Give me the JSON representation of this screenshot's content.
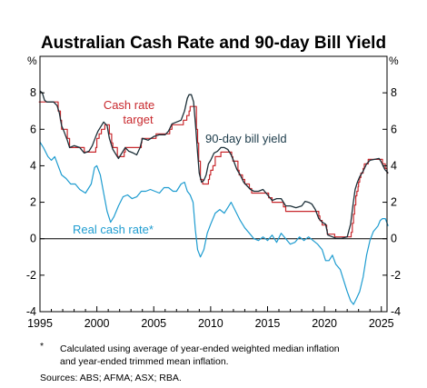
{
  "chart_data": {
    "type": "line",
    "title": "Australian Cash Rate and 90-day Bill Yield",
    "ylabel_left": "%",
    "ylabel_right": "%",
    "ylim": [
      -4,
      10
    ],
    "xlim": [
      1995,
      2025.5
    ],
    "x_ticks": [
      1995,
      2000,
      2005,
      2010,
      2015,
      2020,
      2025
    ],
    "y_ticks": [
      -4,
      -2,
      0,
      2,
      4,
      6,
      8
    ],
    "y_tick_labels": [
      "-4",
      "-2",
      "0",
      "2",
      "4",
      "6",
      "8"
    ],
    "grid": false,
    "annotations": {
      "cash_rate_line1": "Cash rate",
      "cash_rate_line2": "target",
      "bill_yield": "90-day bill yield",
      "real_rate": "Real cash rate*"
    },
    "series": [
      {
        "name": "Cash rate target",
        "color": "#c8282d",
        "step": true,
        "points": [
          [
            1994.9,
            7.5
          ],
          [
            1996.6,
            7.0
          ],
          [
            1996.8,
            6.5
          ],
          [
            1996.9,
            6.0
          ],
          [
            1997.4,
            5.5
          ],
          [
            1997.6,
            5.0
          ],
          [
            1998.9,
            4.75
          ],
          [
            1999.9,
            5.0
          ],
          [
            2000.0,
            5.5
          ],
          [
            2000.2,
            5.75
          ],
          [
            2000.4,
            6.0
          ],
          [
            2000.7,
            6.25
          ],
          [
            2001.1,
            5.75
          ],
          [
            2001.3,
            5.25
          ],
          [
            2001.4,
            5.0
          ],
          [
            2001.8,
            4.5
          ],
          [
            2002.4,
            4.75
          ],
          [
            2002.5,
            5.0
          ],
          [
            2003.9,
            5.25
          ],
          [
            2003.95,
            5.5
          ],
          [
            2005.2,
            5.75
          ],
          [
            2006.4,
            6.0
          ],
          [
            2006.6,
            6.25
          ],
          [
            2006.9,
            6.25
          ],
          [
            2007.6,
            6.5
          ],
          [
            2007.9,
            6.75
          ],
          [
            2008.1,
            7.0
          ],
          [
            2008.2,
            7.25
          ],
          [
            2008.75,
            6.0
          ],
          [
            2008.85,
            5.25
          ],
          [
            2008.95,
            4.25
          ],
          [
            2009.1,
            3.25
          ],
          [
            2009.3,
            3.0
          ],
          [
            2009.8,
            3.25
          ],
          [
            2009.9,
            3.5
          ],
          [
            2010.0,
            3.75
          ],
          [
            2010.2,
            4.0
          ],
          [
            2010.4,
            4.5
          ],
          [
            2010.9,
            4.75
          ],
          [
            2011.85,
            4.5
          ],
          [
            2011.95,
            4.25
          ],
          [
            2012.4,
            3.75
          ],
          [
            2012.5,
            3.5
          ],
          [
            2012.8,
            3.25
          ],
          [
            2013.0,
            3.0
          ],
          [
            2013.4,
            2.75
          ],
          [
            2013.6,
            2.5
          ],
          [
            2015.1,
            2.25
          ],
          [
            2015.4,
            2.0
          ],
          [
            2016.4,
            1.75
          ],
          [
            2016.6,
            1.5
          ],
          [
            2019.5,
            1.25
          ],
          [
            2019.6,
            1.0
          ],
          [
            2019.8,
            0.75
          ],
          [
            2020.2,
            0.5
          ],
          [
            2020.25,
            0.25
          ],
          [
            2020.9,
            0.1
          ],
          [
            2022.35,
            0.35
          ],
          [
            2022.45,
            0.85
          ],
          [
            2022.55,
            1.35
          ],
          [
            2022.65,
            1.85
          ],
          [
            2022.75,
            2.35
          ],
          [
            2022.85,
            2.6
          ],
          [
            2022.95,
            2.85
          ],
          [
            2023.0,
            3.1
          ],
          [
            2023.1,
            3.35
          ],
          [
            2023.2,
            3.6
          ],
          [
            2023.4,
            3.85
          ],
          [
            2023.5,
            4.1
          ],
          [
            2023.85,
            4.35
          ],
          [
            2025.1,
            4.1
          ],
          [
            2025.35,
            3.85
          ],
          [
            2025.5,
            3.6
          ],
          [
            2025.6,
            3.6
          ]
        ]
      },
      {
        "name": "90-day bill yield",
        "color": "#1c2f38",
        "step": false,
        "points": [
          [
            1995.0,
            8.1
          ],
          [
            1995.2,
            8.0
          ],
          [
            1995.4,
            7.6
          ],
          [
            1995.6,
            7.5
          ],
          [
            1995.9,
            7.5
          ],
          [
            1996.2,
            7.5
          ],
          [
            1996.5,
            7.3
          ],
          [
            1996.7,
            6.9
          ],
          [
            1996.9,
            6.2
          ],
          [
            1997.1,
            5.9
          ],
          [
            1997.4,
            5.4
          ],
          [
            1997.6,
            5.0
          ],
          [
            1998.0,
            5.1
          ],
          [
            1998.5,
            5.0
          ],
          [
            1998.9,
            4.7
          ],
          [
            1999.3,
            4.8
          ],
          [
            1999.6,
            5.1
          ],
          [
            1999.9,
            5.6
          ],
          [
            2000.1,
            5.9
          ],
          [
            2000.4,
            6.2
          ],
          [
            2000.6,
            6.4
          ],
          [
            2000.9,
            6.2
          ],
          [
            2001.1,
            5.5
          ],
          [
            2001.4,
            4.9
          ],
          [
            2001.7,
            4.6
          ],
          [
            2001.9,
            4.4
          ],
          [
            2002.2,
            4.7
          ],
          [
            2002.5,
            5.0
          ],
          [
            2002.8,
            4.8
          ],
          [
            2003.2,
            4.7
          ],
          [
            2003.5,
            4.6
          ],
          [
            2003.8,
            5.0
          ],
          [
            2004.0,
            5.5
          ],
          [
            2004.5,
            5.4
          ],
          [
            2005.0,
            5.6
          ],
          [
            2005.5,
            5.7
          ],
          [
            2006.0,
            5.7
          ],
          [
            2006.3,
            5.9
          ],
          [
            2006.6,
            6.3
          ],
          [
            2007.0,
            6.4
          ],
          [
            2007.4,
            6.5
          ],
          [
            2007.7,
            7.0
          ],
          [
            2007.95,
            7.7
          ],
          [
            2008.1,
            7.9
          ],
          [
            2008.3,
            7.9
          ],
          [
            2008.5,
            7.5
          ],
          [
            2008.7,
            6.0
          ],
          [
            2008.85,
            4.7
          ],
          [
            2009.0,
            3.6
          ],
          [
            2009.2,
            3.1
          ],
          [
            2009.4,
            3.2
          ],
          [
            2009.6,
            3.5
          ],
          [
            2009.8,
            4.1
          ],
          [
            2010.0,
            4.3
          ],
          [
            2010.3,
            4.7
          ],
          [
            2010.6,
            4.8
          ],
          [
            2010.9,
            5.0
          ],
          [
            2011.2,
            5.0
          ],
          [
            2011.5,
            4.9
          ],
          [
            2011.8,
            4.6
          ],
          [
            2012.0,
            4.3
          ],
          [
            2012.3,
            3.8
          ],
          [
            2012.6,
            3.5
          ],
          [
            2012.9,
            3.1
          ],
          [
            2013.2,
            2.9
          ],
          [
            2013.5,
            2.7
          ],
          [
            2013.8,
            2.6
          ],
          [
            2014.2,
            2.6
          ],
          [
            2014.6,
            2.7
          ],
          [
            2015.0,
            2.4
          ],
          [
            2015.4,
            2.1
          ],
          [
            2015.8,
            2.2
          ],
          [
            2016.2,
            2.2
          ],
          [
            2016.6,
            1.8
          ],
          [
            2017.0,
            1.8
          ],
          [
            2017.5,
            1.7
          ],
          [
            2018.0,
            1.8
          ],
          [
            2018.3,
            2.05
          ],
          [
            2018.6,
            2.0
          ],
          [
            2018.9,
            1.9
          ],
          [
            2019.2,
            1.6
          ],
          [
            2019.5,
            1.1
          ],
          [
            2019.8,
            0.9
          ],
          [
            2020.1,
            0.8
          ],
          [
            2020.3,
            0.2
          ],
          [
            2020.7,
            0.1
          ],
          [
            2021.0,
            0.03
          ],
          [
            2021.5,
            0.02
          ],
          [
            2022.0,
            0.1
          ],
          [
            2022.3,
            0.8
          ],
          [
            2022.5,
            1.8
          ],
          [
            2022.7,
            2.7
          ],
          [
            2022.9,
            3.1
          ],
          [
            2023.1,
            3.4
          ],
          [
            2023.4,
            3.7
          ],
          [
            2023.7,
            4.1
          ],
          [
            2024.0,
            4.3
          ],
          [
            2024.4,
            4.35
          ],
          [
            2024.8,
            4.4
          ],
          [
            2025.0,
            4.2
          ],
          [
            2025.3,
            3.8
          ],
          [
            2025.6,
            3.6
          ]
        ]
      },
      {
        "name": "Real cash rate*",
        "color": "#1e9cd0",
        "step": false,
        "points": [
          [
            1995.0,
            5.3
          ],
          [
            1995.3,
            5.0
          ],
          [
            1995.7,
            4.5
          ],
          [
            1996.0,
            4.3
          ],
          [
            1996.3,
            4.5
          ],
          [
            1996.6,
            4.0
          ],
          [
            1996.9,
            3.5
          ],
          [
            1997.3,
            3.3
          ],
          [
            1997.7,
            3.0
          ],
          [
            1998.1,
            3.0
          ],
          [
            1998.5,
            2.7
          ],
          [
            1999.0,
            2.5
          ],
          [
            1999.5,
            3.0
          ],
          [
            1999.8,
            3.9
          ],
          [
            2000.0,
            4.0
          ],
          [
            2000.3,
            3.5
          ],
          [
            2000.6,
            2.5
          ],
          [
            2000.9,
            1.5
          ],
          [
            2001.2,
            0.9
          ],
          [
            2001.5,
            1.2
          ],
          [
            2001.9,
            1.8
          ],
          [
            2002.3,
            2.3
          ],
          [
            2002.7,
            2.4
          ],
          [
            2003.1,
            2.2
          ],
          [
            2003.5,
            2.3
          ],
          [
            2003.9,
            2.6
          ],
          [
            2004.3,
            2.6
          ],
          [
            2004.7,
            2.7
          ],
          [
            2005.1,
            2.6
          ],
          [
            2005.5,
            2.5
          ],
          [
            2005.9,
            2.8
          ],
          [
            2006.3,
            2.8
          ],
          [
            2006.7,
            2.6
          ],
          [
            2007.0,
            2.6
          ],
          [
            2007.4,
            3.0
          ],
          [
            2007.7,
            3.1
          ],
          [
            2007.95,
            2.6
          ],
          [
            2008.2,
            2.4
          ],
          [
            2008.45,
            2.0
          ],
          [
            2008.65,
            0.5
          ],
          [
            2008.85,
            -0.6
          ],
          [
            2009.1,
            -1.0
          ],
          [
            2009.4,
            -0.6
          ],
          [
            2009.7,
            0.3
          ],
          [
            2010.0,
            0.8
          ],
          [
            2010.4,
            1.4
          ],
          [
            2010.8,
            1.6
          ],
          [
            2011.2,
            1.4
          ],
          [
            2011.5,
            1.7
          ],
          [
            2011.8,
            2.0
          ],
          [
            2012.2,
            1.5
          ],
          [
            2012.6,
            1.0
          ],
          [
            2013.0,
            0.6
          ],
          [
            2013.4,
            0.3
          ],
          [
            2013.8,
            0.0
          ],
          [
            2014.2,
            -0.1
          ],
          [
            2014.6,
            0.1
          ],
          [
            2015.0,
            -0.1
          ],
          [
            2015.4,
            0.2
          ],
          [
            2015.8,
            -0.2
          ],
          [
            2016.2,
            0.3
          ],
          [
            2016.6,
            0.0
          ],
          [
            2017.0,
            -0.3
          ],
          [
            2017.4,
            -0.2
          ],
          [
            2017.8,
            0.1
          ],
          [
            2018.2,
            -0.1
          ],
          [
            2018.6,
            0.1
          ],
          [
            2019.0,
            -0.1
          ],
          [
            2019.4,
            -0.3
          ],
          [
            2019.8,
            -0.6
          ],
          [
            2020.1,
            -1.2
          ],
          [
            2020.4,
            -1.2
          ],
          [
            2020.7,
            -0.9
          ],
          [
            2021.0,
            -1.4
          ],
          [
            2021.4,
            -1.7
          ],
          [
            2021.7,
            -2.3
          ],
          [
            2022.0,
            -2.9
          ],
          [
            2022.3,
            -3.4
          ],
          [
            2022.55,
            -3.6
          ],
          [
            2022.8,
            -3.3
          ],
          [
            2023.1,
            -2.9
          ],
          [
            2023.4,
            -2.1
          ],
          [
            2023.7,
            -0.9
          ],
          [
            2024.0,
            -0.1
          ],
          [
            2024.3,
            0.4
          ],
          [
            2024.7,
            0.7
          ],
          [
            2024.9,
            1.0
          ],
          [
            2025.1,
            1.1
          ],
          [
            2025.35,
            1.1
          ],
          [
            2025.6,
            0.7
          ]
        ]
      }
    ]
  },
  "footnote": {
    "marker": "*",
    "line1": "Calculated using average of year-ended weighted median inflation",
    "line2": "and year-ended trimmed mean inflation."
  },
  "sources": "Sources: ABS; AFMA; ASX; RBA."
}
